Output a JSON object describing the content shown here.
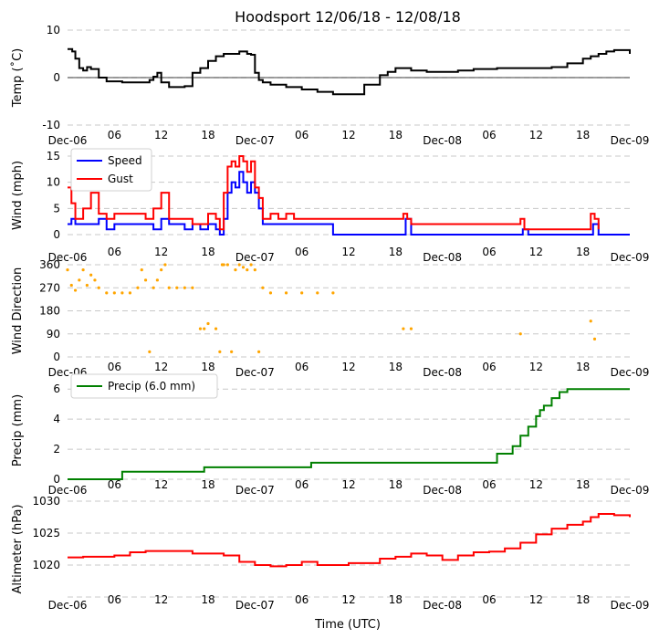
{
  "chart_data": [
    {
      "type": "line",
      "title": "Hoodsport 12/06/18 - 12/08/18",
      "xlabel": "",
      "ylabel": "Temp (˚C)",
      "ylim": [
        -10,
        10
      ],
      "yticks": [
        -10,
        0,
        10
      ],
      "xlim": [
        0,
        72
      ],
      "zero_line": true,
      "grid": "horizontal-dashed",
      "x_tick_labels": [
        "Dec-06",
        "06",
        "12",
        "18",
        "Dec-07",
        "06",
        "12",
        "18",
        "Dec-08",
        "06",
        "12",
        "18",
        "Dec-09"
      ],
      "series": [
        {
          "name": "Temp",
          "color": "#000000",
          "x": [
            0,
            0.6,
            1,
            1.5,
            2,
            2.5,
            3,
            4,
            5,
            6,
            7,
            8,
            9,
            10,
            10.5,
            11,
            11.5,
            12,
            13,
            14,
            15,
            16,
            17,
            18,
            19,
            20,
            21,
            22,
            23,
            23.5,
            24,
            24.5,
            25,
            25.5,
            26,
            28,
            30,
            32,
            34,
            36,
            38,
            40,
            41,
            42,
            43,
            44,
            45,
            46,
            48,
            50,
            52,
            55,
            58,
            60,
            62,
            64,
            66,
            67,
            68,
            69,
            70,
            71,
            72
          ],
          "y": [
            6,
            5.5,
            4,
            2,
            1.5,
            2.2,
            1.8,
            0,
            -0.8,
            -0.8,
            -1,
            -1,
            -1,
            -1,
            -0.5,
            0.2,
            1,
            -1,
            -2,
            -2,
            -1.8,
            1,
            2,
            3.5,
            4.5,
            5,
            5,
            5.5,
            5,
            4.8,
            1,
            -0.5,
            -1,
            -1,
            -1.5,
            -2,
            -2.5,
            -3,
            -3.5,
            -3.5,
            -1.5,
            0.5,
            1.2,
            2,
            2,
            1.5,
            1.5,
            1.2,
            1.2,
            1.5,
            1.8,
            2,
            2,
            2,
            2.2,
            3,
            4,
            4.5,
            5,
            5.5,
            5.8,
            5.8,
            5
          ]
        }
      ]
    },
    {
      "type": "line",
      "xlabel": "",
      "ylabel": "Wind (mph)",
      "ylim": [
        0,
        15
      ],
      "yticks": [
        0,
        5,
        10,
        15
      ],
      "xlim": [
        0,
        72
      ],
      "grid": "horizontal-dashed",
      "legend": "top-left",
      "x_tick_labels": [
        "Dec-06",
        "06",
        "12",
        "18",
        "Dec-07",
        "06",
        "12",
        "18",
        "Dec-08",
        "06",
        "12",
        "18",
        "Dec-09"
      ],
      "series": [
        {
          "name": "Speed",
          "color": "#0000ff",
          "x": [
            0,
            0.5,
            1,
            2,
            3,
            4,
            5,
            6,
            7,
            8,
            9,
            10,
            11,
            12,
            13,
            14,
            15,
            16,
            17,
            18,
            19,
            19.5,
            20,
            20.5,
            21,
            21.5,
            22,
            22.5,
            23,
            23.5,
            24,
            24.5,
            25,
            26,
            27,
            28,
            29,
            30,
            31,
            32,
            33,
            34,
            36,
            38,
            40,
            42,
            43,
            43.3,
            44,
            45,
            48,
            50,
            52,
            55,
            58,
            58.3,
            59,
            60,
            62,
            64,
            66,
            67,
            67.3,
            68,
            69,
            72
          ],
          "y": [
            2,
            3,
            2,
            2,
            2,
            3,
            1,
            2,
            2,
            2,
            2,
            2,
            1,
            3,
            2,
            2,
            1,
            2,
            1,
            2,
            1,
            0,
            3,
            8,
            10,
            9,
            12,
            10,
            8,
            10,
            8,
            5,
            2,
            2,
            2,
            2,
            2,
            2,
            2,
            2,
            2,
            0,
            0,
            0,
            0,
            0,
            0,
            3,
            0,
            0,
            0,
            0,
            0,
            0,
            0,
            1,
            0,
            0,
            0,
            0,
            0,
            0,
            2,
            0,
            0,
            0
          ]
        },
        {
          "name": "Gust",
          "color": "#ff0000",
          "x": [
            0,
            0.5,
            1,
            2,
            3,
            4,
            5,
            6,
            7,
            8,
            9,
            10,
            11,
            12,
            13,
            14,
            15,
            16,
            17,
            18,
            19,
            19.5,
            20,
            20.5,
            21,
            21.5,
            22,
            22.5,
            23,
            23.5,
            24,
            24.5,
            25,
            26,
            27,
            28,
            29,
            30,
            31,
            32,
            33,
            43,
            43.5,
            44,
            58,
            58.5,
            67,
            67.5,
            68
          ],
          "y": [
            9,
            6,
            3,
            5,
            8,
            4,
            3,
            4,
            4,
            4,
            4,
            3,
            5,
            8,
            3,
            3,
            3,
            2,
            2,
            4,
            3,
            1,
            8,
            13,
            14,
            13,
            15,
            14,
            12,
            14,
            9,
            7,
            3,
            4,
            3,
            4,
            3,
            3,
            3,
            3,
            3,
            4,
            3,
            2,
            3,
            1,
            4,
            3,
            1
          ]
        }
      ]
    },
    {
      "type": "scatter",
      "xlabel": "",
      "ylabel": "Wind Direction",
      "ylim": [
        0,
        360
      ],
      "yticks": [
        0,
        90,
        180,
        270,
        360
      ],
      "xlim": [
        0,
        72
      ],
      "grid": "horizontal-dashed",
      "x_tick_labels": [
        "Dec-06",
        "06",
        "12",
        "18",
        "Dec-07",
        "06",
        "12",
        "18",
        "Dec-08",
        "06",
        "12",
        "18",
        "Dec-09"
      ],
      "series": [
        {
          "name": "Direction",
          "color": "#ffa500",
          "x": [
            0,
            0.5,
            1,
            1.5,
            2,
            2.5,
            3,
            3.5,
            4,
            5,
            6,
            7,
            8,
            9,
            9.5,
            10,
            10.5,
            11,
            11.5,
            12,
            12.5,
            13,
            14,
            15,
            16,
            17,
            17.5,
            18,
            19,
            19.5,
            19.8,
            20,
            20.5,
            21,
            21.5,
            22,
            22.5,
            23,
            23.5,
            24,
            24.5,
            25,
            26,
            28,
            30,
            32,
            34,
            43,
            44,
            58,
            67,
            67.5
          ],
          "y": [
            340,
            280,
            260,
            300,
            340,
            280,
            320,
            300,
            270,
            250,
            250,
            250,
            250,
            270,
            340,
            300,
            20,
            270,
            300,
            340,
            360,
            270,
            270,
            270,
            270,
            110,
            110,
            130,
            110,
            20,
            360,
            360,
            360,
            20,
            340,
            360,
            350,
            340,
            360,
            340,
            20,
            270,
            250,
            250,
            250,
            250,
            250,
            110,
            110,
            90,
            140,
            70
          ]
        }
      ]
    },
    {
      "type": "line",
      "xlabel": "",
      "ylabel": "Precip (mm)",
      "ylim": [
        0,
        6.5
      ],
      "yticks": [
        0,
        2,
        4,
        6
      ],
      "xlim": [
        0,
        72
      ],
      "grid": "horizontal-dashed",
      "legend": "top-left",
      "x_tick_labels": [
        "Dec-06",
        "06",
        "12",
        "18",
        "Dec-07",
        "06",
        "12",
        "18",
        "Dec-08",
        "06",
        "12",
        "18",
        "Dec-09"
      ],
      "series": [
        {
          "name": "Precip (6.0 mm)",
          "color": "#008000",
          "x": [
            0,
            6.9,
            7,
            17.4,
            17.5,
            31,
            31.2,
            54.9,
            55,
            56.9,
            57,
            58,
            59,
            60,
            60.5,
            61,
            62,
            63,
            64,
            72
          ],
          "y": [
            0,
            0,
            0.5,
            0.5,
            0.8,
            0.8,
            1.1,
            1.1,
            1.7,
            1.7,
            2.2,
            2.9,
            3.5,
            4.2,
            4.6,
            4.9,
            5.4,
            5.8,
            6,
            6
          ]
        }
      ]
    },
    {
      "type": "line",
      "xlabel": "Time (UTC)",
      "ylabel": "Altimeter (hPa)",
      "ylim": [
        1015,
        1030
      ],
      "yticks": [
        1020,
        1025,
        1030
      ],
      "xlim": [
        0,
        72
      ],
      "grid": "horizontal-dashed",
      "x_tick_labels": [
        "Dec-06",
        "06",
        "12",
        "18",
        "Dec-07",
        "06",
        "12",
        "18",
        "Dec-08",
        "06",
        "12",
        "18",
        "Dec-09"
      ],
      "series": [
        {
          "name": "Altimeter",
          "color": "#ff0000",
          "x": [
            0,
            2,
            4,
            6,
            8,
            10,
            12,
            14,
            16,
            18,
            20,
            22,
            24,
            26,
            28,
            30,
            32,
            34,
            36,
            38,
            40,
            42,
            44,
            46,
            48,
            50,
            52,
            54,
            56,
            58,
            60,
            62,
            64,
            66,
            67,
            68,
            70,
            72
          ],
          "y": [
            1021.2,
            1021.3,
            1021.3,
            1021.5,
            1022,
            1022.2,
            1022.2,
            1022.2,
            1021.8,
            1021.8,
            1021.5,
            1020.5,
            1020,
            1019.8,
            1020,
            1020.5,
            1020,
            1020,
            1020.3,
            1020.3,
            1021,
            1021.3,
            1021.8,
            1021.5,
            1020.8,
            1021.5,
            1022,
            1022.1,
            1022.6,
            1023.5,
            1024.8,
            1025.7,
            1026.3,
            1026.8,
            1027.5,
            1028,
            1027.8,
            1027.5
          ]
        }
      ]
    }
  ]
}
